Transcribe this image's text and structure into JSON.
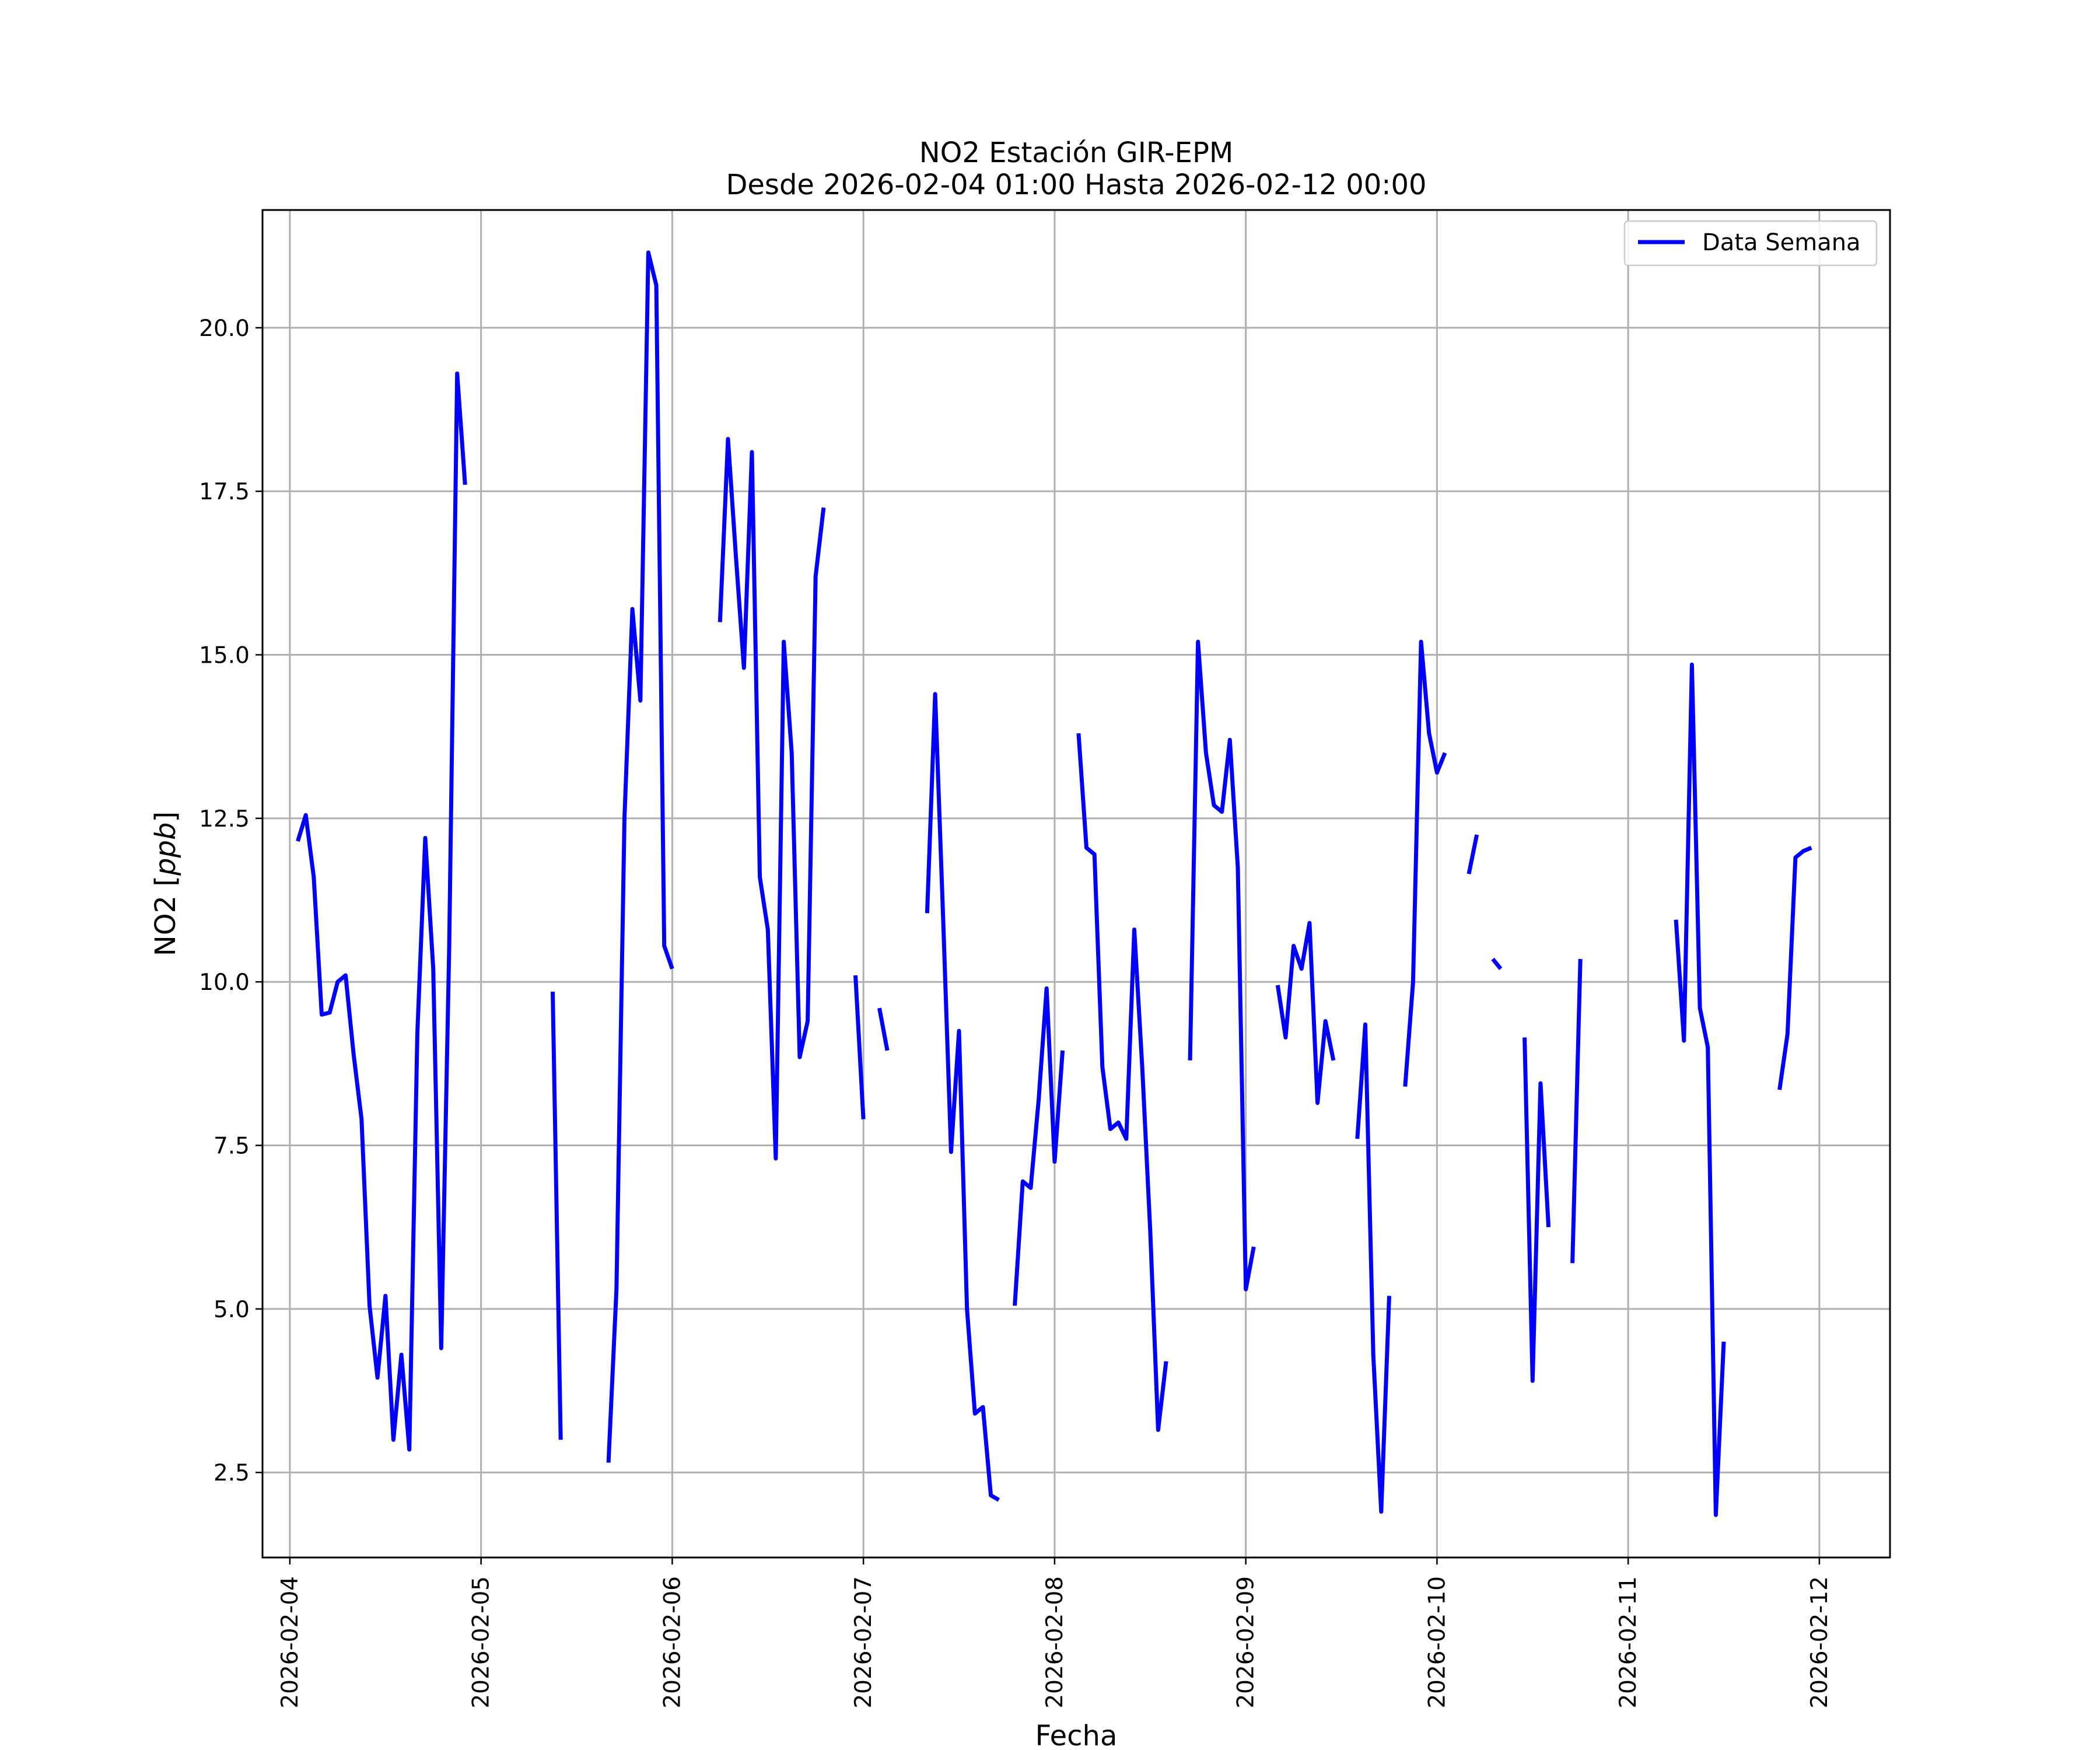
{
  "chart_data": {
    "type": "line",
    "title": "NO2 Estación GIR-EPM",
    "subtitle": "Desde 2026-02-04 01:00 Hasta 2026-02-12 00:00",
    "xlabel": "Fecha",
    "ylabel": "NO2 [ppb]",
    "ylabel_plain": "NO2 [",
    "ylabel_italic": "ppb",
    "ylabel_close": "]",
    "xlim": [
      "2026-02-03 20:34",
      "2026-02-12 08:52"
    ],
    "ylim": [
      1.2,
      21.8
    ],
    "x_ticks": [
      "2026-02-04",
      "2026-02-05",
      "2026-02-06",
      "2026-02-07",
      "2026-02-08",
      "2026-02-09",
      "2026-02-10",
      "2026-02-11",
      "2026-02-12"
    ],
    "y_ticks": [
      "2.5",
      "5.0",
      "7.5",
      "10.0",
      "12.5",
      "15.0",
      "17.5",
      "20.0"
    ],
    "grid": true,
    "legend": {
      "position": "top-right",
      "entries": [
        "Data Semana"
      ]
    },
    "series": [
      {
        "name": "Data Semana",
        "color": "#0000ff",
        "points": [
          [
            "2026-02-04 01:00",
            12.15
          ],
          [
            "2026-02-04 02:00",
            12.55
          ],
          [
            "2026-02-04 03:00",
            11.6
          ],
          [
            "2026-02-04 04:00",
            9.5
          ],
          [
            "2026-02-04 05:00",
            9.53
          ],
          [
            "2026-02-04 06:00",
            10.0
          ],
          [
            "2026-02-04 07:00",
            10.1
          ],
          [
            "2026-02-04 08:00",
            8.9
          ],
          [
            "2026-02-04 09:00",
            7.9
          ],
          [
            "2026-02-04 10:00",
            5.05
          ],
          [
            "2026-02-04 11:00",
            3.95
          ],
          [
            "2026-02-04 12:00",
            5.2
          ],
          [
            "2026-02-04 13:00",
            3.0
          ],
          [
            "2026-02-04 14:00",
            4.3
          ],
          [
            "2026-02-04 15:00",
            2.85
          ],
          [
            "2026-02-04 16:00",
            9.2
          ],
          [
            "2026-02-04 17:00",
            12.2
          ],
          [
            "2026-02-04 18:00",
            10.2
          ],
          [
            "2026-02-04 19:00",
            4.4
          ],
          [
            "2026-02-04 20:00",
            10.5
          ],
          [
            "2026-02-04 21:00",
            19.3
          ],
          [
            "2026-02-04 22:00",
            17.6
          ],
          null,
          [
            "2026-02-05 09:00",
            9.85
          ],
          [
            "2026-02-05 10:00",
            3.0
          ],
          null,
          [
            "2026-02-05 16:00",
            2.65
          ],
          [
            "2026-02-05 17:00",
            5.3
          ],
          [
            "2026-02-05 18:00",
            12.5
          ],
          [
            "2026-02-05 19:00",
            15.7
          ],
          [
            "2026-02-05 20:00",
            14.3
          ],
          [
            "2026-02-05 21:00",
            21.15
          ],
          [
            "2026-02-05 22:00",
            20.65
          ],
          [
            "2026-02-05 23:00",
            10.55
          ],
          [
            "2026-02-06 00:00",
            10.2
          ],
          null,
          [
            "2026-02-06 06:00",
            15.5
          ],
          [
            "2026-02-06 07:00",
            18.3
          ],
          [
            "2026-02-06 08:00",
            16.5
          ],
          [
            "2026-02-06 09:00",
            14.8
          ],
          [
            "2026-02-06 10:00",
            18.1
          ],
          [
            "2026-02-06 11:00",
            11.6
          ],
          [
            "2026-02-06 12:00",
            10.8
          ],
          [
            "2026-02-06 13:00",
            7.3
          ],
          [
            "2026-02-06 14:00",
            15.2
          ],
          [
            "2026-02-06 15:00",
            13.5
          ],
          [
            "2026-02-06 16:00",
            8.85
          ],
          [
            "2026-02-06 17:00",
            9.4
          ],
          [
            "2026-02-06 18:00",
            16.2
          ],
          [
            "2026-02-06 19:00",
            17.25
          ],
          null,
          [
            "2026-02-06 23:00",
            10.1
          ],
          [
            "2026-02-07 00:00",
            7.9
          ],
          null,
          [
            "2026-02-07 02:00",
            9.6
          ],
          [
            "2026-02-07 03:00",
            8.95
          ],
          null,
          [
            "2026-02-07 08:00",
            11.05
          ],
          [
            "2026-02-07 09:00",
            14.4
          ],
          [
            "2026-02-07 10:00",
            11.0
          ],
          [
            "2026-02-07 11:00",
            7.4
          ],
          [
            "2026-02-07 12:00",
            9.25
          ],
          [
            "2026-02-07 13:00",
            5.0
          ],
          [
            "2026-02-07 14:00",
            3.4
          ],
          [
            "2026-02-07 15:00",
            3.5
          ],
          [
            "2026-02-07 16:00",
            2.15
          ],
          [
            "2026-02-07 17:00",
            2.08
          ],
          null,
          [
            "2026-02-07 19:00",
            5.05
          ],
          [
            "2026-02-07 20:00",
            6.95
          ],
          [
            "2026-02-07 21:00",
            6.85
          ],
          [
            "2026-02-07 22:00",
            8.2
          ],
          [
            "2026-02-07 23:00",
            9.9
          ],
          [
            "2026-02-08 00:00",
            7.25
          ],
          [
            "2026-02-08 01:00",
            8.95
          ],
          null,
          [
            "2026-02-08 03:00",
            13.8
          ],
          [
            "2026-02-08 04:00",
            12.05
          ],
          [
            "2026-02-08 05:00",
            11.95
          ],
          [
            "2026-02-08 06:00",
            8.7
          ],
          [
            "2026-02-08 07:00",
            7.75
          ],
          [
            "2026-02-08 08:00",
            7.85
          ],
          [
            "2026-02-08 09:00",
            7.6
          ],
          [
            "2026-02-08 10:00",
            10.8
          ],
          [
            "2026-02-08 11:00",
            8.7
          ],
          [
            "2026-02-08 12:00",
            6.2
          ],
          [
            "2026-02-08 13:00",
            3.15
          ],
          [
            "2026-02-08 14:00",
            4.2
          ],
          null,
          [
            "2026-02-08 17:00",
            8.8
          ],
          [
            "2026-02-08 18:00",
            15.2
          ],
          [
            "2026-02-08 19:00",
            13.5
          ],
          [
            "2026-02-08 20:00",
            12.7
          ],
          [
            "2026-02-08 21:00",
            12.6
          ],
          [
            "2026-02-08 22:00",
            13.7
          ],
          [
            "2026-02-08 23:00",
            11.75
          ],
          [
            "2026-02-09 00:00",
            5.3
          ],
          [
            "2026-02-09 01:00",
            5.95
          ],
          null,
          [
            "2026-02-09 04:00",
            9.95
          ],
          [
            "2026-02-09 05:00",
            9.15
          ],
          [
            "2026-02-09 06:00",
            10.55
          ],
          [
            "2026-02-09 07:00",
            10.2
          ],
          [
            "2026-02-09 08:00",
            10.9
          ],
          [
            "2026-02-09 09:00",
            8.15
          ],
          [
            "2026-02-09 10:00",
            9.4
          ],
          [
            "2026-02-09 11:00",
            8.8
          ],
          null,
          [
            "2026-02-09 14:00",
            7.6
          ],
          [
            "2026-02-09 15:00",
            9.35
          ],
          [
            "2026-02-09 16:00",
            4.3
          ],
          [
            "2026-02-09 17:00",
            1.9
          ],
          [
            "2026-02-09 18:00",
            5.2
          ],
          null,
          [
            "2026-02-09 20:00",
            8.4
          ],
          [
            "2026-02-09 21:00",
            10.0
          ],
          [
            "2026-02-09 22:00",
            15.2
          ],
          [
            "2026-02-09 23:00",
            13.8
          ],
          [
            "2026-02-10 00:00",
            13.2
          ],
          [
            "2026-02-10 01:00",
            13.5
          ],
          null,
          [
            "2026-02-10 04:00",
            11.65
          ],
          [
            "2026-02-10 05:00",
            12.25
          ],
          null,
          [
            "2026-02-10 07:00",
            10.35
          ],
          [
            "2026-02-10 08:00",
            10.2
          ],
          null,
          [
            "2026-02-10 11:00",
            9.15
          ],
          [
            "2026-02-10 12:00",
            3.9
          ],
          [
            "2026-02-10 13:00",
            8.45
          ],
          [
            "2026-02-10 14:00",
            6.25
          ],
          null,
          [
            "2026-02-10 17:00",
            5.7
          ],
          [
            "2026-02-10 18:00",
            10.35
          ],
          null,
          [
            "2026-02-11 06:00",
            10.95
          ],
          [
            "2026-02-11 07:00",
            9.1
          ],
          [
            "2026-02-11 08:00",
            14.85
          ],
          [
            "2026-02-11 09:00",
            9.6
          ],
          [
            "2026-02-11 10:00",
            9.0
          ],
          [
            "2026-02-11 11:00",
            1.85
          ],
          [
            "2026-02-11 12:00",
            4.5
          ],
          null,
          [
            "2026-02-11 19:00",
            8.35
          ],
          [
            "2026-02-11 20:00",
            9.2
          ],
          [
            "2026-02-11 21:00",
            11.9
          ],
          [
            "2026-02-11 22:00",
            12.0
          ],
          [
            "2026-02-11 23:00",
            12.05
          ]
        ]
      }
    ]
  }
}
